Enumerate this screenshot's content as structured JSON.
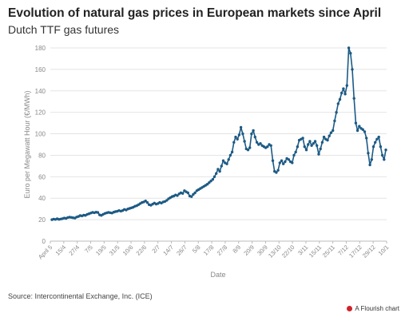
{
  "header": {
    "title": "Evolution of natural gas prices in European markets since April",
    "subtitle": "Dutch TTF gas futures"
  },
  "footer": {
    "source": "Source: Intercontinental Exchange, Inc. (ICE)",
    "credit": "A Flourish chart",
    "credit_icon": "flourish-logo-icon"
  },
  "colors": {
    "line": "#1c5a85",
    "grid": "#e4e4e4",
    "axis_text": "#888888"
  },
  "chart_data": {
    "type": "line",
    "title": "Evolution of natural gas prices in European markets since April",
    "subtitle": "Dutch TTF gas futures",
    "xlabel": "Date",
    "ylabel": "Euro per Megawatt Hour (€/MWh)",
    "ylim": [
      0,
      180
    ],
    "yticks": [
      0,
      20,
      40,
      60,
      80,
      100,
      120,
      140,
      160,
      180
    ],
    "grid": true,
    "x_ticks": [
      "April 5",
      "15/4",
      "27/4",
      "7/5",
      "19/5",
      "31/5",
      "10/6",
      "22/6",
      "2/7",
      "14/7",
      "26/7",
      "5/8",
      "17/8",
      "27/8",
      "8/9",
      "20/9",
      "30/9",
      "13/10",
      "22/10",
      "3/11",
      "15/11",
      "25/11",
      "7/12",
      "17/12",
      "29/12",
      "10/1"
    ],
    "series": [
      {
        "values": [
          20,
          20.5,
          20.2,
          20.8,
          20.3,
          20.6,
          21,
          21.5,
          21.2,
          22,
          22.3,
          22.1,
          21.8,
          21.5,
          22.5,
          23,
          23.8,
          23.5,
          24.2,
          24,
          25,
          25.5,
          26.2,
          26.8,
          26.5,
          27,
          26.7,
          24.5,
          24,
          25,
          25.8,
          26.3,
          26.8,
          26.5,
          26.2,
          27,
          27.5,
          27.8,
          28.5,
          28,
          28.5,
          29.5,
          29,
          30,
          30.5,
          31,
          31.5,
          32.5,
          33,
          34,
          35,
          36,
          36.5,
          37.5,
          36,
          34,
          33.5,
          34.5,
          35.5,
          34.5,
          35,
          36,
          35.5,
          36.5,
          37,
          38,
          39.5,
          40.5,
          41.5,
          42,
          43,
          42.5,
          44,
          45,
          44.5,
          47,
          46,
          45,
          42,
          41.5,
          43.5,
          45,
          47,
          48,
          49,
          50,
          51,
          52,
          53,
          54.5,
          56,
          57.5,
          60,
          63,
          67,
          65,
          70,
          75,
          73,
          72,
          76,
          80,
          83,
          92,
          97,
          95,
          99,
          106,
          100,
          93,
          86,
          85,
          87,
          100,
          103,
          97,
          92,
          90,
          91,
          89,
          88,
          87,
          88,
          90,
          89,
          75,
          65,
          64,
          66,
          73,
          75,
          72,
          74,
          77,
          76,
          74,
          73,
          80,
          83,
          88,
          94,
          95,
          96,
          88,
          85,
          90,
          93,
          89,
          91,
          93,
          89,
          81,
          86,
          92,
          97,
          95,
          94,
          98,
          101,
          103,
          112,
          120,
          128,
          132,
          138,
          142,
          137,
          145,
          180,
          175,
          160,
          133,
          110,
          103,
          107,
          105,
          104,
          102,
          96,
          82,
          71,
          76,
          88,
          92,
          95,
          97,
          88,
          80,
          76,
          85
        ]
      }
    ]
  }
}
